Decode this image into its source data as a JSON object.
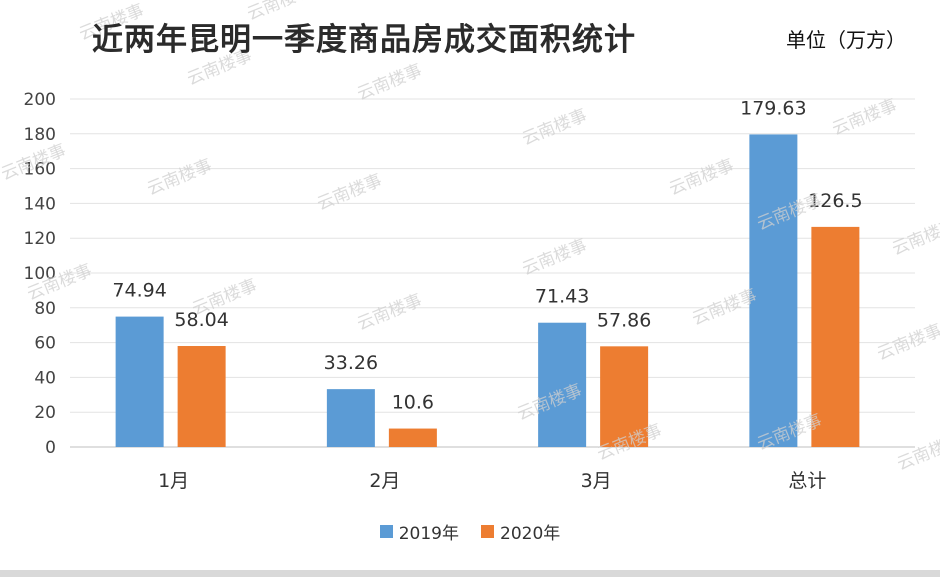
{
  "chart_data": {
    "type": "bar",
    "title": "近两年昆明一季度商品房成交面积统计",
    "unit_label": "单位（万方）",
    "categories": [
      "1月",
      "2月",
      "3月",
      "总计"
    ],
    "series": [
      {
        "name": "2019年",
        "color": "#5b9bd5",
        "values": [
          74.94,
          33.26,
          71.43,
          179.63
        ],
        "labels": [
          "74.94",
          "33.26",
          "71.43",
          "179.63"
        ]
      },
      {
        "name": "2020年",
        "color": "#ed7d31",
        "values": [
          58.04,
          10.6,
          57.86,
          126.5
        ],
        "labels": [
          "58.04",
          "10.6",
          "57.86",
          "126.5"
        ]
      }
    ],
    "ylim": [
      0,
      200
    ],
    "yticks": [
      "0",
      "20",
      "40",
      "60",
      "80",
      "100",
      "120",
      "140",
      "160",
      "180",
      "200"
    ],
    "grid": true,
    "legend_position": "bottom"
  },
  "watermark": "云南楼事"
}
